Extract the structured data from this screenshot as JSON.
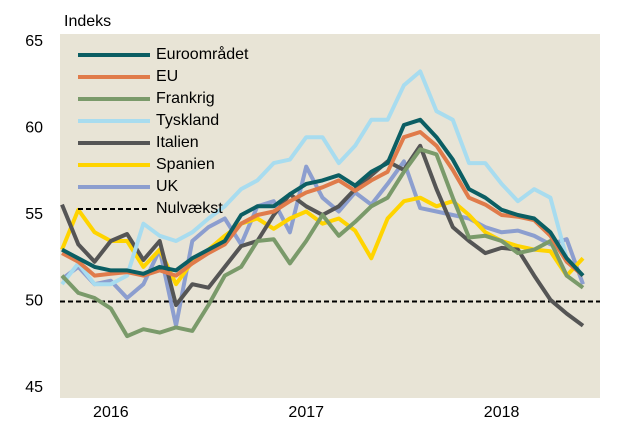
{
  "chart_data": {
    "type": "line",
    "y_label": "Indeks",
    "categories": [
      null,
      null,
      null,
      "2016",
      null,
      null,
      null,
      null,
      null,
      null,
      null,
      null,
      null,
      null,
      null,
      "2017",
      null,
      null,
      null,
      null,
      null,
      null,
      null,
      null,
      null,
      null,
      null,
      "2018",
      null,
      null,
      null,
      null,
      null
    ],
    "ylim": [
      45,
      65
    ],
    "yticks": [
      45,
      50,
      55,
      60,
      65
    ],
    "grid": false,
    "legend": "top-left",
    "series": [
      {
        "name": "Euroområdet",
        "color": "#0b5e63",
        "values": [
          53.0,
          52.5,
          52.0,
          51.8,
          51.8,
          51.6,
          52.0,
          51.8,
          52.5,
          53.0,
          53.5,
          55.0,
          55.5,
          55.5,
          56.2,
          56.8,
          57.0,
          57.3,
          56.7,
          57.5,
          58.0,
          60.2,
          60.5,
          59.5,
          58.2,
          56.5,
          56.0,
          55.3,
          55.0,
          54.8,
          54.0,
          52.5,
          51.5
        ]
      },
      {
        "name": "EU",
        "color": "#e07b4a",
        "values": [
          52.8,
          52.3,
          51.5,
          51.6,
          51.7,
          51.5,
          51.8,
          51.5,
          52.2,
          52.8,
          53.3,
          54.5,
          55.0,
          55.2,
          55.8,
          56.3,
          56.6,
          57.0,
          56.4,
          57.0,
          57.5,
          59.5,
          59.8,
          59.0,
          57.6,
          56.0,
          55.6,
          55.0,
          54.9,
          54.7,
          53.8,
          52.3,
          51.5
        ]
      },
      {
        "name": "Frankrig",
        "color": "#7a9a6a",
        "values": [
          51.5,
          50.5,
          50.2,
          49.6,
          48.0,
          48.4,
          48.2,
          48.5,
          48.3,
          49.8,
          51.5,
          52.0,
          53.5,
          53.6,
          52.2,
          53.5,
          55.0,
          53.8,
          54.6,
          55.5,
          56.0,
          57.5,
          58.8,
          58.5,
          56.0,
          53.7,
          53.8,
          53.5,
          52.8,
          53.0,
          53.5,
          51.5,
          50.8
        ]
      },
      {
        "name": "Tyskland",
        "color": "#a8dcef",
        "values": [
          51.0,
          52.2,
          51.0,
          51.0,
          51.5,
          54.5,
          53.8,
          53.5,
          54.0,
          54.8,
          55.5,
          56.5,
          57.0,
          58.0,
          58.2,
          59.5,
          59.5,
          58.0,
          59.0,
          60.5,
          60.5,
          62.5,
          63.3,
          61.0,
          60.5,
          58.0,
          58.0,
          56.8,
          55.8,
          56.5,
          56.0,
          52.5,
          51.5
        ]
      },
      {
        "name": "Italien",
        "color": "#555555",
        "values": [
          55.6,
          53.3,
          52.3,
          53.5,
          53.9,
          52.4,
          53.5,
          49.8,
          51.0,
          50.8,
          52.0,
          53.2,
          53.5,
          55.0,
          56.2,
          55.5,
          55.0,
          55.5,
          56.5,
          57.3,
          58.1,
          57.6,
          59.0,
          56.5,
          54.3,
          53.5,
          52.8,
          53.1,
          53.0,
          51.5,
          50.1,
          49.3,
          48.6
        ]
      },
      {
        "name": "Spanien",
        "color": "#ffd400",
        "values": [
          53.0,
          55.3,
          54.0,
          53.5,
          53.5,
          52.0,
          53.0,
          51.0,
          52.3,
          53.0,
          53.8,
          54.5,
          54.8,
          54.2,
          54.8,
          55.2,
          54.5,
          54.8,
          54.1,
          52.5,
          54.8,
          55.8,
          56.0,
          55.5,
          55.8,
          55.0,
          54.0,
          53.5,
          53.2,
          53.0,
          52.9,
          51.5,
          52.5
        ]
      },
      {
        "name": "UK",
        "color": "#8c9ecf",
        "values": [
          51.3,
          52.0,
          51.0,
          51.2,
          50.2,
          51.0,
          53.0,
          48.6,
          53.5,
          54.3,
          54.8,
          53.3,
          55.5,
          55.8,
          54.0,
          57.8,
          56.0,
          55.2,
          56.3,
          55.6,
          56.8,
          58.1,
          55.4,
          55.2,
          55.0,
          54.8,
          54.3,
          54.0,
          54.1,
          53.8,
          53.3,
          53.6,
          51.0
        ]
      }
    ],
    "reference": {
      "name": "Nulvækst",
      "value": 50,
      "color": "#000000"
    }
  }
}
